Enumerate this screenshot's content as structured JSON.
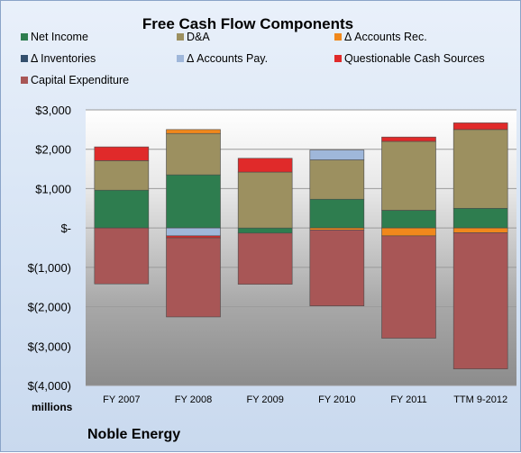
{
  "chart_data": {
    "type": "bar",
    "stacked": true,
    "title": "Free Cash Flow Components",
    "categories": [
      "FY 2007",
      "FY 2008",
      "FY 2009",
      "FY 2010",
      "FY 2011",
      "TTM 9-2012"
    ],
    "series": [
      {
        "name": "Net Income",
        "color": "#2e7d4f",
        "values": [
          960,
          1350,
          -130,
          730,
          450,
          500
        ]
      },
      {
        "name": "D&A",
        "color": "#9c9060",
        "values": [
          750,
          1050,
          1420,
          1000,
          1750,
          2000
        ]
      },
      {
        "name": "Δ Accounts Rec.",
        "color": "#f0881c",
        "values": [
          0,
          100,
          0,
          -50,
          -200,
          -120
        ]
      },
      {
        "name": "Δ Inventories",
        "color": "#34506e",
        "values": [
          0,
          0,
          0,
          0,
          0,
          0
        ]
      },
      {
        "name": "Δ Accounts Pay.",
        "color": "#9fb7da",
        "values": [
          0,
          -200,
          0,
          250,
          0,
          0
        ]
      },
      {
        "name": "Questionable Cash Sources",
        "color": "#e02a2a",
        "values": [
          350,
          -50,
          350,
          0,
          110,
          170
        ]
      },
      {
        "name": "Capital Expenditure",
        "color": "#a85656",
        "values": [
          -1420,
          -2010,
          -1300,
          -1930,
          -2600,
          -3460
        ]
      }
    ],
    "ylim": [
      -4000,
      3000
    ],
    "yticks": [
      3000,
      2000,
      1000,
      0,
      -1000,
      -2000,
      -3000,
      -4000
    ],
    "ytick_labels": [
      "$3,000",
      "$2,000",
      "$1,000",
      "$-",
      "$(1,000)",
      "$(2,000)",
      "$(3,000)",
      "$(4,000)"
    ],
    "units_label": "millions",
    "company_label": "Noble Energy",
    "legend_position": "top"
  }
}
